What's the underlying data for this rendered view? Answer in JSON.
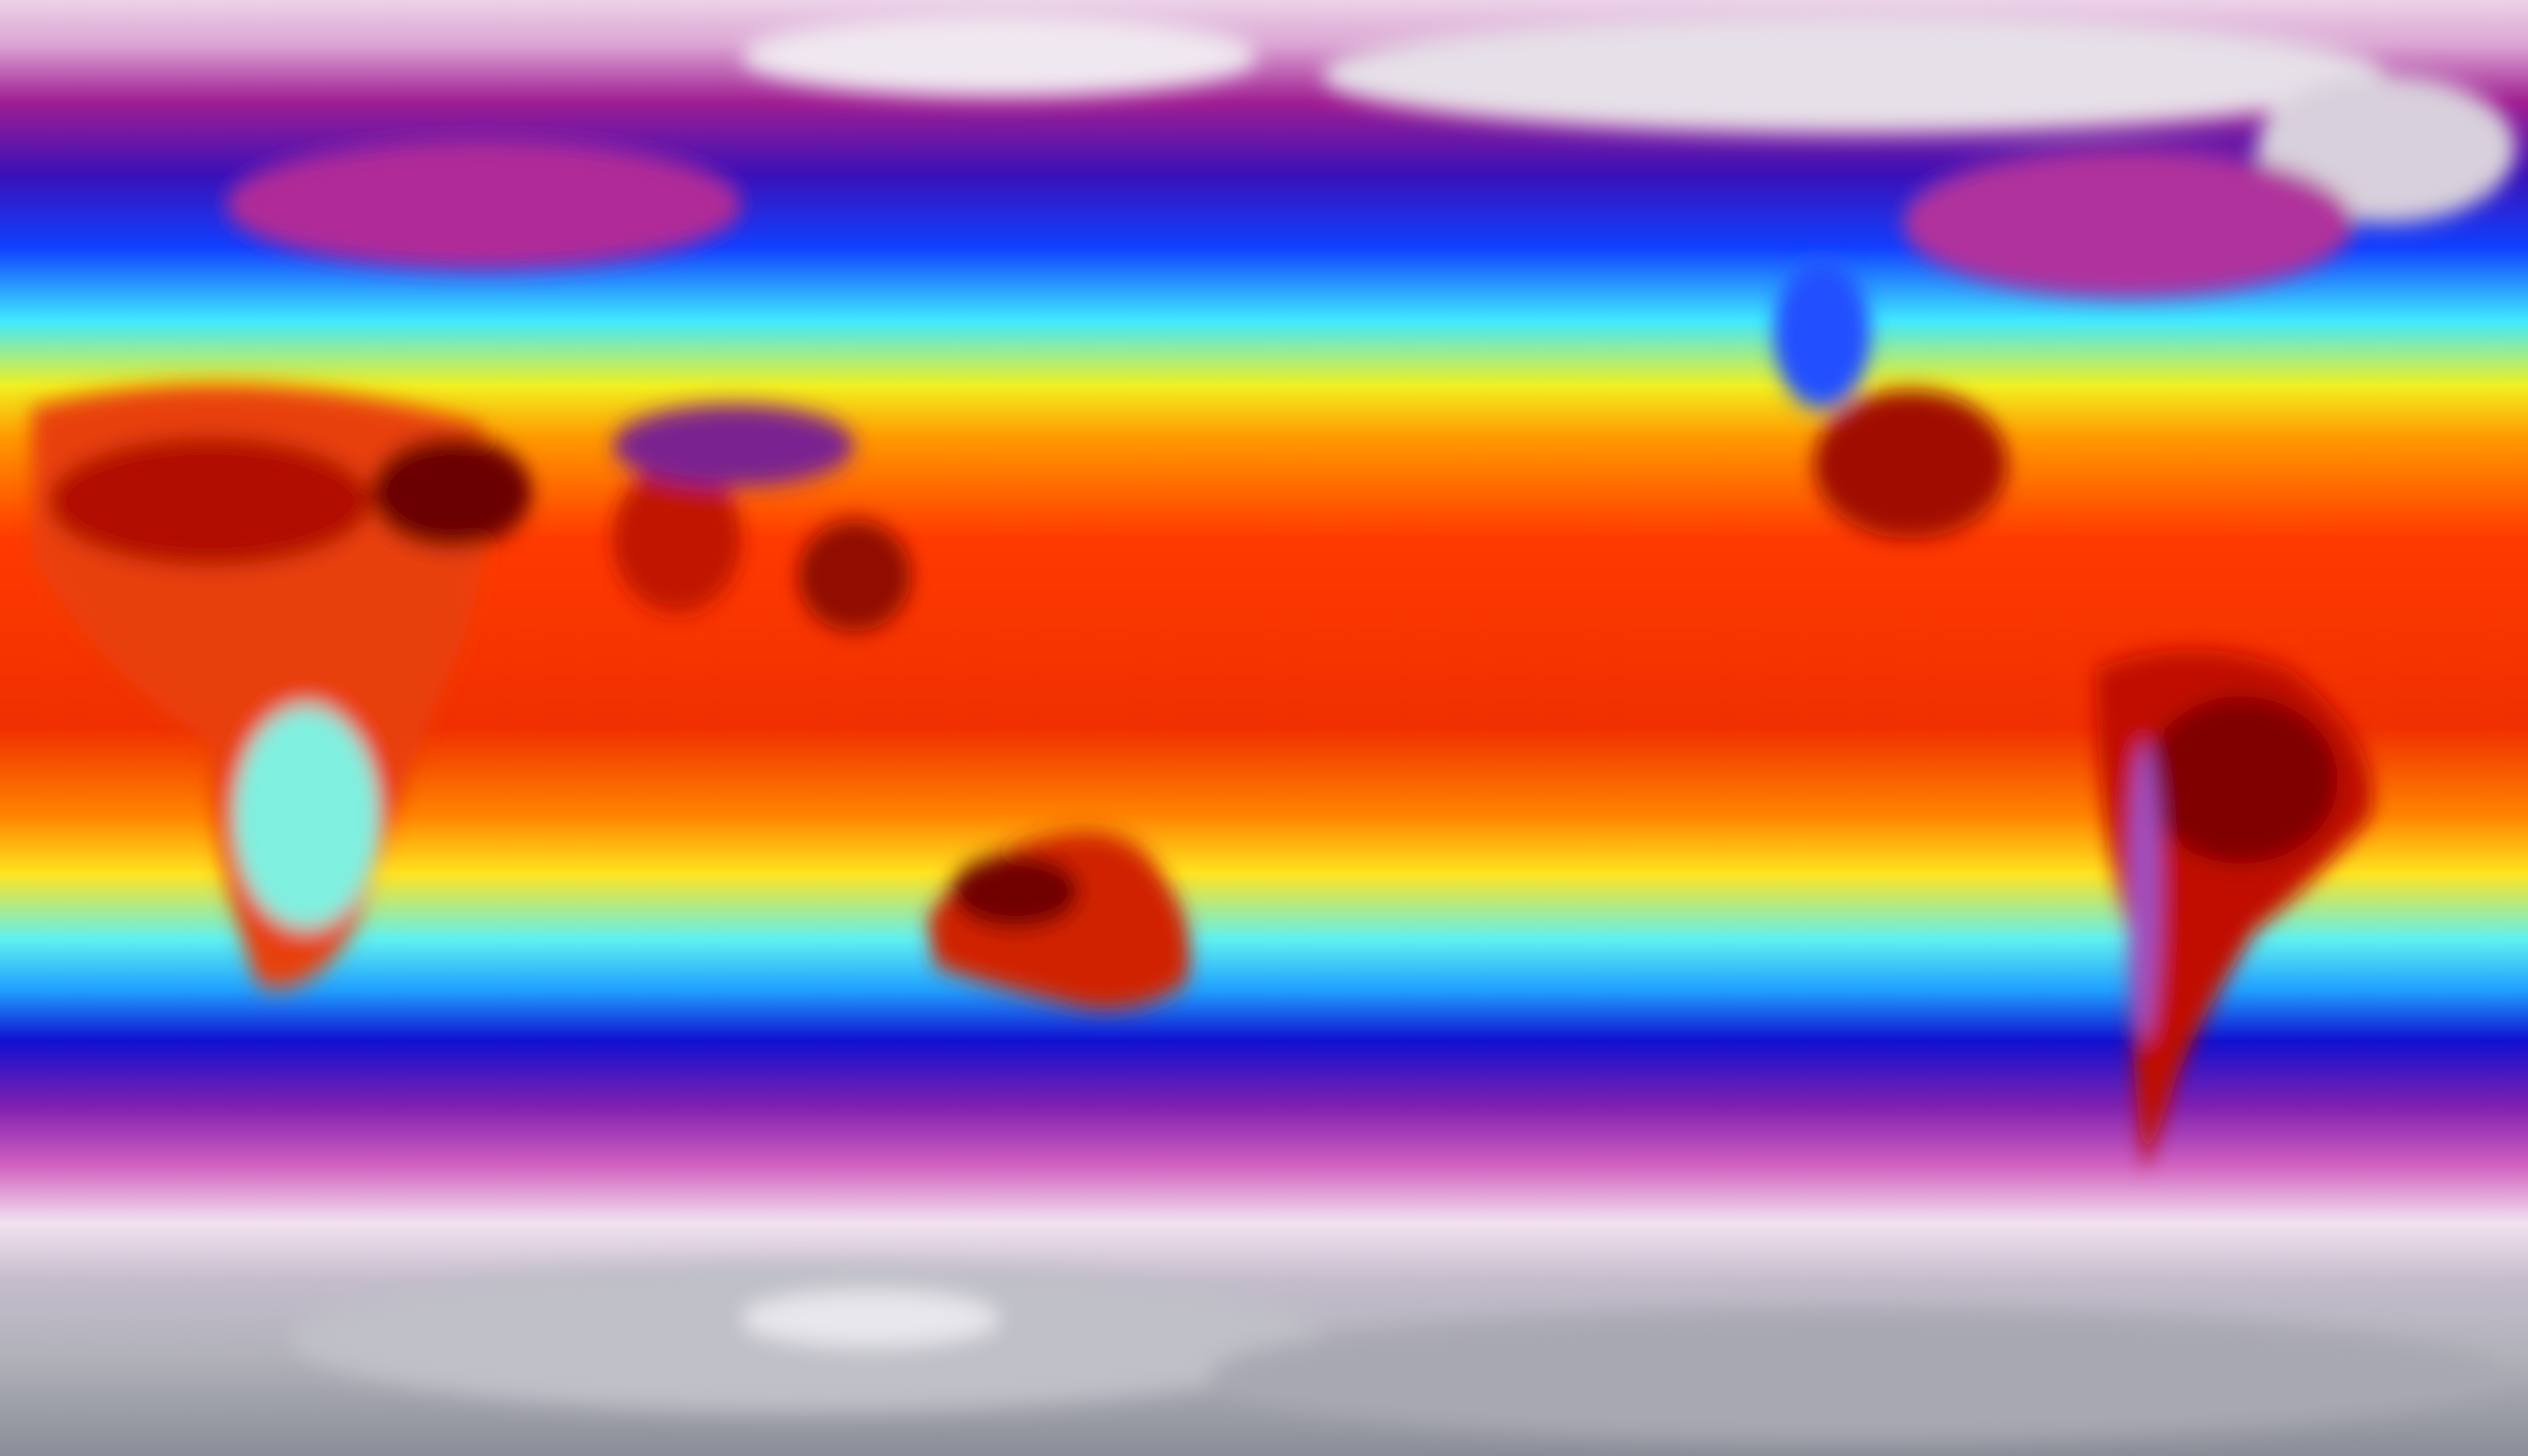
{
  "map": {
    "projection": "equirectangular",
    "colormap": [
      "#f0e0f0",
      "#c040b0",
      "#2010d0",
      "#1050ff",
      "#40f0ff",
      "#f8f020",
      "#ff9000",
      "#ff2800",
      "#a00000",
      "#300000"
    ],
    "regions": {
      "arctic": "#e8dce8",
      "antarctica": "#b4b4bc",
      "tropics": "#ff3a00",
      "hot_land": "#8a0000",
      "highland": "#7a2090"
    }
  }
}
